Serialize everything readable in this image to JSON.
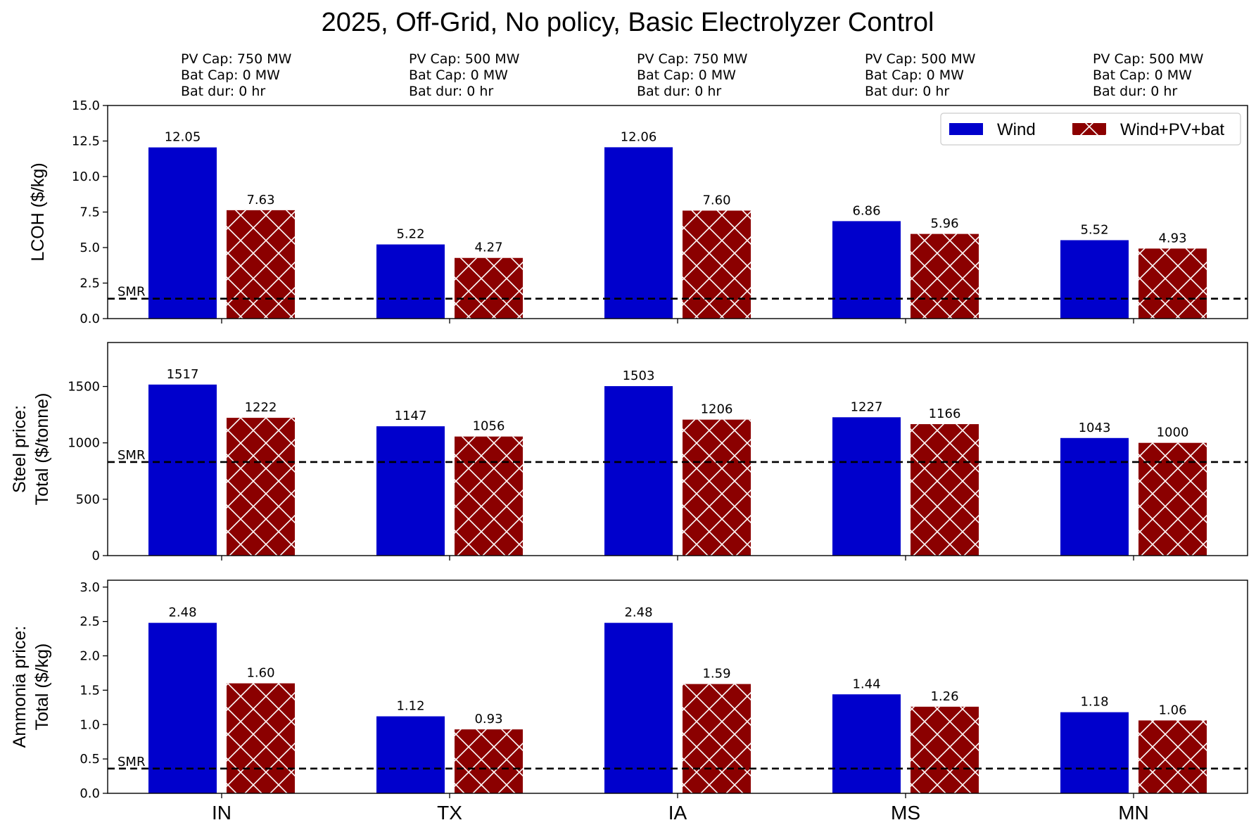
{
  "title": "2025, Off-Grid, No policy, Basic Electrolyzer Control",
  "colors": {
    "wind": "#0000cc",
    "windpvbat": "#8b0000",
    "hatch": "#ffffff",
    "smr": "#000000"
  },
  "legend": {
    "placement": "top-right",
    "entries": [
      "Wind",
      "Wind+PV+bat"
    ]
  },
  "capacities": [
    {
      "pv": "PV Cap: 750 MW",
      "bat": "Bat Cap: 0 MW",
      "dur": "Bat dur: 0 hr"
    },
    {
      "pv": "PV Cap: 500 MW",
      "bat": "Bat Cap: 0 MW",
      "dur": "Bat dur: 0 hr"
    },
    {
      "pv": "PV Cap: 750 MW",
      "bat": "Bat Cap: 0 MW",
      "dur": "Bat dur: 0 hr"
    },
    {
      "pv": "PV Cap: 500 MW",
      "bat": "Bat Cap: 0 MW",
      "dur": "Bat dur: 0 hr"
    },
    {
      "pv": "PV Cap: 500 MW",
      "bat": "Bat Cap: 0 MW",
      "dur": "Bat dur: 0 hr"
    }
  ],
  "chart_data": [
    {
      "type": "bar",
      "ylabel": [
        "LCOH ($/kg)"
      ],
      "categories": [
        "IN",
        "TX",
        "IA",
        "MS",
        "MN"
      ],
      "ylim": [
        0,
        15
      ],
      "yticks": [
        0,
        2.5,
        5,
        7.5,
        10,
        12.5,
        15
      ],
      "tick_labels": [
        "0.0",
        "2.5",
        "5.0",
        "7.5",
        "10.0",
        "12.5",
        "15.0"
      ],
      "series": [
        {
          "name": "Wind",
          "values": [
            12.05,
            5.22,
            12.06,
            6.86,
            5.52
          ],
          "labels": [
            "12.05",
            "5.22",
            "12.06",
            "6.86",
            "5.52"
          ]
        },
        {
          "name": "Wind+PV+bat",
          "values": [
            7.63,
            4.27,
            7.6,
            5.96,
            4.93
          ],
          "labels": [
            "7.63",
            "4.27",
            "7.60",
            "5.96",
            "4.93"
          ]
        }
      ],
      "reference_line": {
        "label": "SMR",
        "value": 1.4
      },
      "legend": true,
      "grid": false
    },
    {
      "type": "bar",
      "ylabel": [
        "Steel price:",
        "Total ($/tonne)"
      ],
      "categories": [
        "IN",
        "TX",
        "IA",
        "MS",
        "MN"
      ],
      "ylim": [
        0,
        1890
      ],
      "yticks": [
        0,
        500,
        1000,
        1500
      ],
      "tick_labels": [
        "0",
        "500",
        "1000",
        "1500"
      ],
      "series": [
        {
          "name": "Wind",
          "values": [
            1517,
            1147,
            1503,
            1227,
            1043
          ],
          "labels": [
            "1517",
            "1147",
            "1503",
            "1227",
            "1043"
          ]
        },
        {
          "name": "Wind+PV+bat",
          "values": [
            1222,
            1056,
            1206,
            1166,
            1000
          ],
          "labels": [
            "1222",
            "1056",
            "1206",
            "1166",
            "1000"
          ]
        }
      ],
      "reference_line": {
        "label": "SMR",
        "value": 830
      },
      "legend": false,
      "grid": false
    },
    {
      "type": "bar",
      "ylabel": [
        "Ammonia price:",
        "Total ($/kg)"
      ],
      "categories": [
        "IN",
        "TX",
        "IA",
        "MS",
        "MN"
      ],
      "ylim": [
        0,
        3.1
      ],
      "yticks": [
        0,
        0.5,
        1,
        1.5,
        2,
        2.5,
        3
      ],
      "tick_labels": [
        "0.0",
        "0.5",
        "1.0",
        "1.5",
        "2.0",
        "2.5",
        "3.0"
      ],
      "series": [
        {
          "name": "Wind",
          "values": [
            2.48,
            1.12,
            2.48,
            1.44,
            1.18
          ],
          "labels": [
            "2.48",
            "1.12",
            "2.48",
            "1.44",
            "1.18"
          ]
        },
        {
          "name": "Wind+PV+bat",
          "values": [
            1.6,
            0.93,
            1.59,
            1.26,
            1.06
          ],
          "labels": [
            "1.60",
            "0.93",
            "1.59",
            "1.26",
            "1.06"
          ]
        }
      ],
      "reference_line": {
        "label": "SMR",
        "value": 0.36
      },
      "legend": false,
      "grid": false
    }
  ]
}
